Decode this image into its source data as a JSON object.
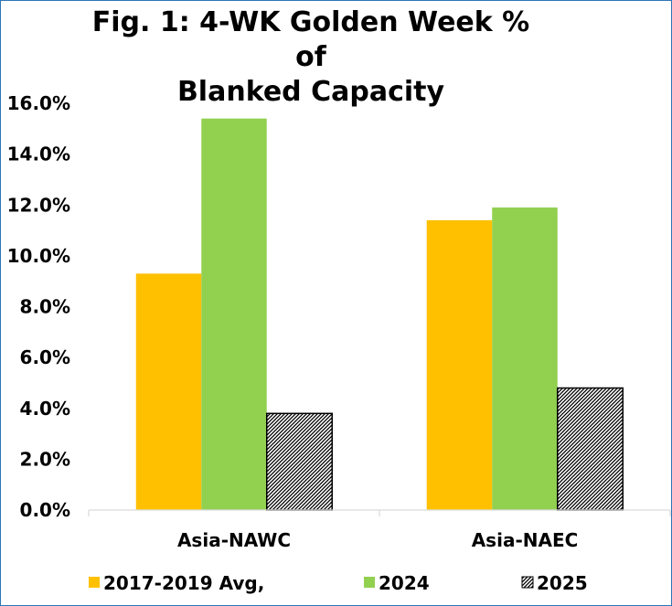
{
  "chart_data": {
    "type": "bar",
    "title_line1": "Fig. 1: 4-WK Golden Week % of",
    "title_line2": "Blanked Capacity",
    "categories": [
      "Asia-NAWC",
      "Asia-NAEC"
    ],
    "series": [
      {
        "name": "2017-2019 Avg,",
        "values": [
          9.3,
          11.4
        ],
        "color": "#ffc000",
        "pattern": "solid"
      },
      {
        "name": "2024",
        "values": [
          15.4,
          11.9
        ],
        "color": "#92d050",
        "pattern": "solid"
      },
      {
        "name": "2025",
        "values": [
          3.8,
          4.8
        ],
        "color": "#000000",
        "pattern": "hatch"
      }
    ],
    "ylim": [
      0,
      16
    ],
    "yticks": [
      0,
      2,
      4,
      6,
      8,
      10,
      12,
      14,
      16
    ],
    "ytick_labels": [
      "0.0%",
      "2.0%",
      "4.0%",
      "6.0%",
      "8.0%",
      "10.0%",
      "12.0%",
      "14.0%",
      "16.0%"
    ],
    "xlabel": "",
    "ylabel": "",
    "grid": false,
    "legend_position": "bottom"
  },
  "frame_color": "#2e75b6"
}
